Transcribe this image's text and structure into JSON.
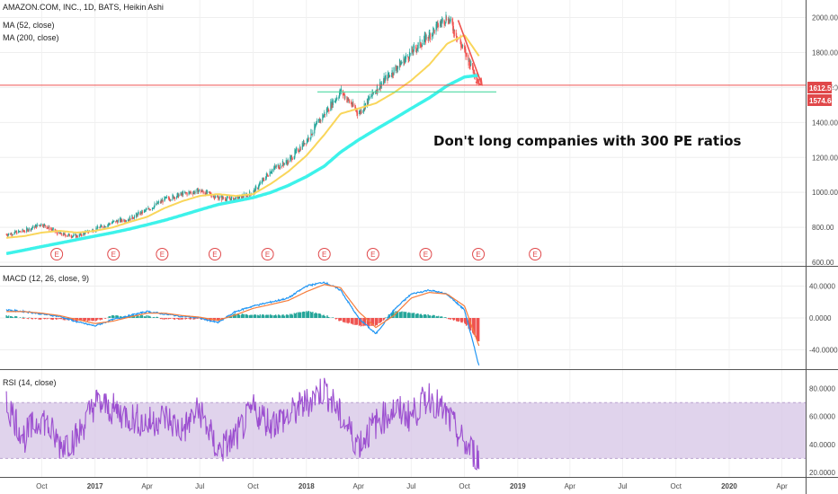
{
  "header": {
    "symbol_line": "AMAZON.COM, INC., 1D, BATS, Heikin Ashi",
    "ma52_label": "MA (52, close)",
    "ma200_label": "MA (200, close)"
  },
  "annotation": "Don't long companies with 300 PE ratios",
  "earnings_marker": "E",
  "price_tags": {
    "current": "1612.59",
    "level": "1574.64"
  },
  "macd_label": "MACD (12, 26, close, 9)",
  "rsi_label": "RSI (14, close)",
  "colors": {
    "candle_up": "#26a69a",
    "candle_down": "#ef5350",
    "ma52": "#f9d65b",
    "ma200": "#3df2ea",
    "macd_line": "#2196f3",
    "signal_line": "#f57c3b",
    "rsi_line": "#9c4fd0",
    "rsi_band": "#d6c4e6",
    "price_line": "#ef5350",
    "support_line": "#4ed9a2",
    "tag_red": "#e0484a"
  },
  "chart_data": [
    {
      "type": "line",
      "title": "AMAZON.COM, INC., 1D, BATS, Heikin Ashi",
      "y_ticks": [
        "2000.00",
        "1800.00",
        "1600.00",
        "1400.00",
        "1200.00",
        "1000.00",
        "800.00",
        "600.00"
      ],
      "y_tick_values": [
        2000,
        1800,
        1600,
        1400,
        1200,
        1000,
        800,
        600
      ],
      "ylim": [
        590,
        2090
      ],
      "x_labels": [
        "Oct",
        "2017",
        "Apr",
        "Jul",
        "Oct",
        "2018",
        "Apr",
        "Jul",
        "Oct",
        "2019",
        "Apr",
        "Jul",
        "Oct",
        "2020",
        "Apr"
      ],
      "price_series": {
        "name": "Heikin Ashi",
        "x": [
          "2016-08-01",
          "2016-09-01",
          "2016-10-01",
          "2016-11-01",
          "2016-12-01",
          "2017-01-01",
          "2017-02-01",
          "2017-03-01",
          "2017-04-01",
          "2017-05-01",
          "2017-06-01",
          "2017-07-01",
          "2017-08-01",
          "2017-09-01",
          "2017-10-01",
          "2017-11-01",
          "2017-12-01",
          "2018-01-01",
          "2018-02-01",
          "2018-03-01",
          "2018-04-01",
          "2018-05-01",
          "2018-06-01",
          "2018-07-01",
          "2018-08-01",
          "2018-09-01",
          "2018-10-01",
          "2018-10-26"
        ],
        "values": [
          760,
          780,
          820,
          760,
          750,
          790,
          830,
          850,
          900,
          960,
          990,
          1010,
          970,
          960,
          1000,
          1130,
          1180,
          1300,
          1450,
          1580,
          1450,
          1590,
          1700,
          1800,
          1900,
          2010,
          1800,
          1630
        ]
      },
      "ma52": [
        740,
        750,
        770,
        780,
        770,
        780,
        800,
        830,
        860,
        910,
        950,
        980,
        990,
        980,
        990,
        1050,
        1120,
        1210,
        1330,
        1450,
        1480,
        1510,
        1570,
        1640,
        1730,
        1850,
        1900,
        1780
      ],
      "ma200": [
        650,
        670,
        690,
        710,
        730,
        750,
        770,
        790,
        815,
        840,
        870,
        900,
        930,
        950,
        970,
        1000,
        1040,
        1090,
        1150,
        1230,
        1300,
        1360,
        1420,
        1480,
        1540,
        1610,
        1660,
        1670
      ],
      "horizontal_levels": [
        1612.59,
        1574.64
      ],
      "earnings_dates": [
        "2016-10-27",
        "2017-02-02",
        "2017-04-27",
        "2017-07-27",
        "2017-10-26",
        "2018-02-01",
        "2018-04-26",
        "2018-07-26",
        "2018-10-25",
        "2019-01-31"
      ]
    },
    {
      "type": "bar",
      "title": "MACD (12, 26, close, 9)",
      "y_ticks": [
        "40.0000",
        "0.0000",
        "-40.0000"
      ],
      "y_tick_values": [
        40,
        0,
        -40
      ],
      "ylim": [
        -62,
        62
      ],
      "macd": [
        10,
        8,
        5,
        2,
        -5,
        -10,
        -2,
        3,
        8,
        5,
        2,
        0,
        -6,
        8,
        15,
        20,
        25,
        40,
        45,
        35,
        0,
        -20,
        10,
        30,
        35,
        30,
        10,
        -60
      ],
      "signal": [
        8,
        8,
        6,
        3,
        -2,
        -7,
        -4,
        1,
        6,
        6,
        3,
        1,
        -3,
        4,
        12,
        17,
        22,
        33,
        42,
        38,
        8,
        -12,
        3,
        25,
        32,
        30,
        15,
        -35
      ]
    },
    {
      "type": "line",
      "title": "RSI (14, close)",
      "y_ticks": [
        "80.0000",
        "60.0000",
        "40.0000",
        "20.0000"
      ],
      "y_tick_values": [
        80,
        60,
        40,
        20
      ],
      "ylim": [
        18,
        92
      ],
      "band": [
        30,
        70
      ],
      "values": [
        70,
        45,
        60,
        40,
        45,
        70,
        65,
        60,
        55,
        60,
        50,
        65,
        35,
        45,
        65,
        55,
        60,
        70,
        80,
        60,
        40,
        55,
        65,
        60,
        75,
        60,
        40,
        30
      ]
    }
  ]
}
